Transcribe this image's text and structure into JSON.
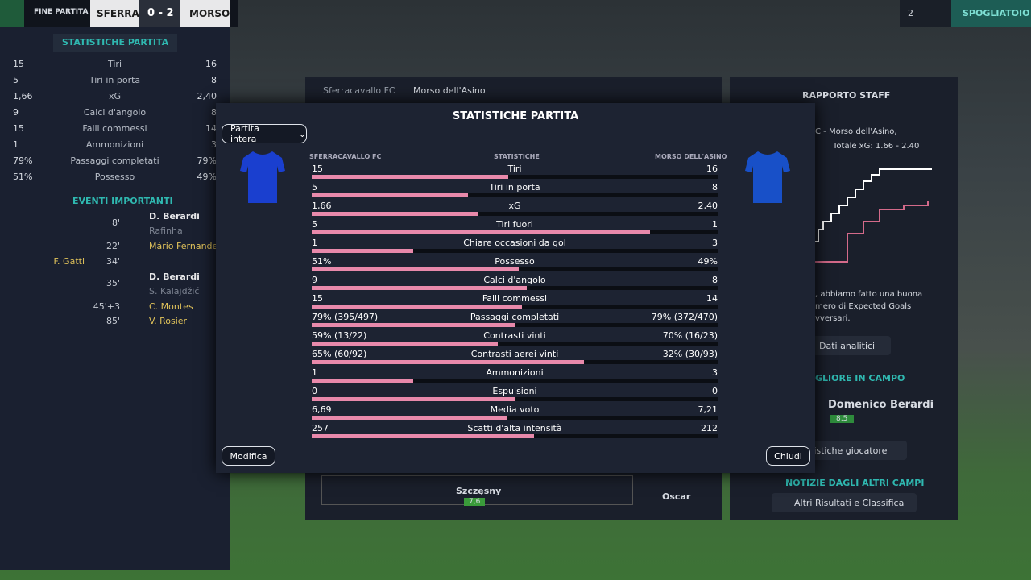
{
  "topbar": {
    "status": "FINE PARTITA",
    "home": "SFERRA",
    "score": "0 - 2",
    "away": "MORSO",
    "count": "2",
    "button": "SPOGLIATOIO"
  },
  "sidebar": {
    "stats_title": "STATISTICHE PARTITA",
    "stats": [
      [
        "15",
        "Tiri",
        "16"
      ],
      [
        "5",
        "Tiri in porta",
        "8"
      ],
      [
        "1,66",
        "xG",
        "2,40"
      ],
      [
        "9",
        "Calci d'angolo",
        "8"
      ],
      [
        "15",
        "Falli commessi",
        "14"
      ],
      [
        "1",
        "Ammonizioni",
        "3"
      ],
      [
        "79%",
        "Passaggi completati",
        "79%"
      ],
      [
        "51%",
        "Possesso",
        "49%"
      ]
    ],
    "events_title": "EVENTI IMPORTANTI",
    "events": [
      {
        "minute": "8'",
        "player": "D. Berardi",
        "detail": "Rafinha"
      },
      {
        "minute": "22'",
        "player": "Mário Fernandes"
      },
      {
        "left": "F. Gatti",
        "minute": "34'"
      },
      {
        "minute": "35'",
        "player": "D. Berardi",
        "detail": "S. Kalajdžić"
      },
      {
        "minute": "45'+3",
        "player": "C. Montes"
      },
      {
        "minute": "85'",
        "player": "V. Rosier"
      }
    ]
  },
  "background": {
    "tabs": [
      "Sferracavallo FC",
      "Morso dell'Asino"
    ],
    "pitch_players": [
      {
        "name": "Szczęsny",
        "rating": "7,6"
      },
      {
        "name": "Oscar"
      }
    ],
    "staff": {
      "title": "RAPPORTO STAFF",
      "line1": "C - Morso dell'Asino,",
      "xg": "Totale xG: 1.66 - 2.40",
      "text": [
        ", abbiamo fatto una buona",
        "mero di Expected Goals",
        "vversari."
      ],
      "analytics": "Dati analitici",
      "best_title": "GLIORE IN CAMPO",
      "best_player": "Domenico Berardi",
      "best_rating": "8,5",
      "player_stats": "tistiche giocatore",
      "news_title": "NOTIZIE DAGLI ALTRI CAMPI",
      "news_button": "Altri Risultati e Classifica"
    }
  },
  "modal": {
    "title": "STATISTICHE PARTITA",
    "period": "Partita intera",
    "home_header": "SFERRACAVALLO FC",
    "stats_header": "STATISTICHE",
    "away_header": "MORSO DELL'ASINO",
    "rows": [
      {
        "home": "15",
        "label": "Tiri",
        "away": "16"
      },
      {
        "home": "5",
        "label": "Tiri in porta",
        "away": "8"
      },
      {
        "home": "1,66",
        "label": "xG",
        "away": "2,40"
      },
      {
        "home": "5",
        "label": "Tiri fuori",
        "away": "1"
      },
      {
        "home": "1",
        "label": "Chiare occasioni da gol",
        "away": "3"
      },
      {
        "home": "51%",
        "label": "Possesso",
        "away": "49%"
      },
      {
        "home": "9",
        "label": "Calci d'angolo",
        "away": "8"
      },
      {
        "home": "15",
        "label": "Falli commessi",
        "away": "14"
      },
      {
        "home": "79% (395/497)",
        "label": "Passaggi completati",
        "away": "79% (372/470)"
      },
      {
        "home": "59% (13/22)",
        "label": "Contrasti vinti",
        "away": "70% (16/23)"
      },
      {
        "home": "65% (60/92)",
        "label": "Contrasti aerei vinti",
        "away": "32% (30/93)"
      },
      {
        "home": "1",
        "label": "Ammonizioni",
        "away": "3"
      },
      {
        "home": "0",
        "label": "Espulsioni",
        "away": "0"
      },
      {
        "home": "6,69",
        "label": "Media voto",
        "away": "7,21"
      },
      {
        "home": "257",
        "label": "Scatti d'alta intensità",
        "away": "212"
      }
    ],
    "edit": "Modifica",
    "close": "Chiudi"
  }
}
